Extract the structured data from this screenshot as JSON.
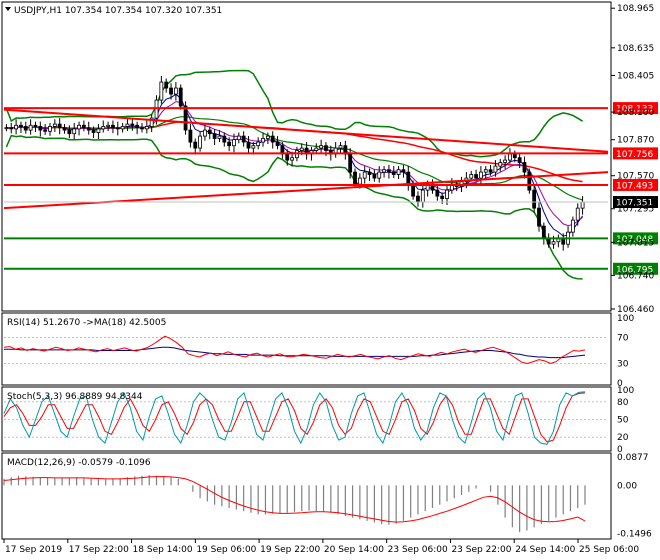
{
  "main_title": "USDJPY,H1  107.354 107.354 107.320 107.351",
  "rsi_title": "RSI(14) 51.2670  ->MA(18) 42.5005",
  "stoch_title": "Stoch(5,3,3) 96.8889 94.8344",
  "macd_title": "MACD(12,26,9) -0.0579 -0.1096",
  "current_price": "107.351",
  "colors": {
    "hline": "#ff0000",
    "hline_green": "#008000",
    "bands": "#008000",
    "ma_red": "#ff0000",
    "candle": "#000000",
    "ma_fast_blue": "#0000aa",
    "ma_fast_purple": "#aa00aa",
    "rsi": "#ff0000",
    "rsi_ma": "#000080",
    "stoch_k": "#0099aa",
    "stoch_d": "#ff0000",
    "macd_hist": "#808080",
    "macd_signal": "#ff0000"
  },
  "chart_data": [
    {
      "type": "candlestick",
      "symbol": "USDJPY",
      "timeframe": "H1",
      "ylim": [
        106.46,
        109.0
      ],
      "y_ticks": [
        "108.965",
        "108.635",
        "108.405",
        "108.100",
        "107.870",
        "107.570",
        "107.295",
        "107.015",
        "106.740",
        "106.460"
      ],
      "x_labels": [
        "17 Sep 2019",
        "17 Sep 22:00",
        "18 Sep 14:00",
        "19 Sep 06:00",
        "19 Sep 22:00",
        "20 Sep 14:00",
        "23 Sep 06:00",
        "23 Sep 22:00",
        "24 Sep 14:00",
        "25 Sep 06:00"
      ],
      "close": [
        107.97,
        107.96,
        107.99,
        107.98,
        107.95,
        107.99,
        107.98,
        107.95,
        107.94,
        107.98,
        108.0,
        107.97,
        107.95,
        107.92,
        107.96,
        107.99,
        107.97,
        107.95,
        107.93,
        107.96,
        107.98,
        107.99,
        107.97,
        107.96,
        107.98,
        108.0,
        107.99,
        107.97,
        107.96,
        107.98,
        108.05,
        108.2,
        108.35,
        108.3,
        108.25,
        108.3,
        108.15,
        107.95,
        107.85,
        107.8,
        107.9,
        107.95,
        107.92,
        107.88,
        107.9,
        107.85,
        107.82,
        107.87,
        107.9,
        107.85,
        107.8,
        107.82,
        107.85,
        107.88,
        107.9,
        107.85,
        107.82,
        107.75,
        107.7,
        107.72,
        107.78,
        107.8,
        107.75,
        107.78,
        107.8,
        107.82,
        107.78,
        107.75,
        107.8,
        107.82,
        107.75,
        107.6,
        107.5,
        107.55,
        107.6,
        107.58,
        107.55,
        107.6,
        107.62,
        107.6,
        107.58,
        107.62,
        107.6,
        107.5,
        107.4,
        107.35,
        107.45,
        107.5,
        107.45,
        107.4,
        107.38,
        107.45,
        107.5,
        107.48,
        107.52,
        107.55,
        107.58,
        107.55,
        107.6,
        107.62,
        107.6,
        107.65,
        107.68,
        107.7,
        107.75,
        107.72,
        107.68,
        107.6,
        107.45,
        107.3,
        107.15,
        107.05,
        107.0,
        107.02,
        107.05,
        107.0,
        107.1,
        107.2,
        107.3,
        107.35
      ],
      "hlines": [
        {
          "label": "108.133",
          "value": 108.133,
          "color": "red"
        },
        {
          "label": "107.756",
          "value": 107.756,
          "color": "red"
        },
        {
          "label": "107.493",
          "value": 107.493,
          "color": "red"
        },
        {
          "label": "107.048",
          "value": 107.048,
          "color": "green"
        },
        {
          "label": "106.795",
          "value": 106.795,
          "color": "green"
        }
      ],
      "trendlines": [
        {
          "from": [
            0,
            108.12
          ],
          "to": [
            147,
            107.77
          ]
        },
        {
          "from": [
            0,
            107.3
          ],
          "to": [
            147,
            107.6
          ]
        }
      ]
    },
    {
      "type": "line",
      "name": "RSI(14)",
      "ylim": [
        0,
        100
      ],
      "y_ticks": [
        "100",
        "70",
        "30",
        "0"
      ],
      "rsi": [
        55,
        56,
        52,
        54,
        50,
        53,
        51,
        49,
        52,
        55,
        53,
        50,
        51,
        54,
        52,
        50,
        48,
        51,
        53,
        50,
        52,
        54,
        51,
        49,
        52,
        55,
        60,
        66,
        72,
        68,
        62,
        55,
        45,
        42,
        40,
        44,
        46,
        42,
        45,
        48,
        44,
        42,
        40,
        44,
        46,
        42,
        40,
        43,
        45,
        41,
        40,
        42,
        44,
        43,
        41,
        39,
        38,
        41,
        44,
        42,
        40,
        42,
        44,
        41,
        39,
        37,
        40,
        42,
        38,
        36,
        39,
        42,
        45,
        43,
        41,
        44,
        47,
        45,
        48,
        50,
        52,
        49,
        47,
        50,
        53,
        55,
        52,
        49,
        44,
        38,
        32,
        30,
        33,
        36,
        34,
        30,
        33,
        40,
        45,
        50,
        49,
        51
      ],
      "rsi_ma": [
        52,
        52,
        52,
        51,
        51,
        51,
        51,
        51,
        51,
        51,
        51,
        51,
        51,
        51,
        51,
        51,
        50,
        50,
        50,
        50,
        50,
        50,
        50,
        51,
        52,
        53,
        54,
        55,
        55,
        54,
        52,
        50,
        49,
        48,
        47,
        46,
        45,
        45,
        44,
        44,
        44,
        44,
        43,
        43,
        43,
        43,
        43,
        42,
        42,
        42,
        42,
        42,
        42,
        42,
        42,
        42,
        41,
        41,
        41,
        41,
        41,
        41,
        41,
        41,
        41,
        41,
        41,
        41,
        41,
        41,
        41,
        42,
        42,
        43,
        43,
        44,
        45,
        46,
        47,
        48,
        49,
        50,
        50,
        50,
        49,
        48,
        47,
        45,
        44,
        42,
        41,
        40,
        40,
        39,
        39,
        39,
        40,
        41,
        42,
        43
      ]
    },
    {
      "type": "line",
      "name": "Stoch(5,3,3)",
      "ylim": [
        0,
        100
      ],
      "y_ticks": [
        "100",
        "80",
        "50",
        "20",
        "0"
      ],
      "k": [
        60,
        85,
        70,
        40,
        20,
        50,
        80,
        90,
        60,
        30,
        20,
        55,
        85,
        90,
        50,
        20,
        10,
        45,
        80,
        95,
        70,
        30,
        15,
        55,
        85,
        90,
        60,
        25,
        10,
        40,
        80,
        95,
        85,
        50,
        20,
        15,
        45,
        85,
        95,
        60,
        25,
        15,
        50,
        85,
        95,
        70,
        30,
        10,
        35,
        75,
        95,
        80,
        40,
        15,
        20,
        60,
        90,
        95,
        60,
        25,
        10,
        40,
        80,
        95,
        75,
        35,
        15,
        30,
        70,
        95,
        90,
        50,
        20,
        10,
        45,
        85,
        95,
        70,
        30,
        15,
        55,
        90,
        95,
        60,
        20,
        10,
        8,
        30,
        75,
        95,
        90,
        96,
        97
      ],
      "d": [
        55,
        70,
        75,
        60,
        40,
        40,
        55,
        75,
        75,
        55,
        35,
        35,
        55,
        75,
        75,
        55,
        30,
        25,
        45,
        70,
        85,
        65,
        40,
        30,
        50,
        75,
        80,
        60,
        35,
        25,
        45,
        75,
        85,
        75,
        50,
        30,
        30,
        55,
        80,
        80,
        55,
        30,
        30,
        55,
        80,
        85,
        65,
        35,
        25,
        45,
        75,
        85,
        70,
        40,
        25,
        35,
        65,
        85,
        80,
        55,
        30,
        25,
        50,
        80,
        85,
        65,
        35,
        25,
        45,
        75,
        90,
        75,
        45,
        25,
        25,
        55,
        85,
        85,
        60,
        35,
        25,
        55,
        85,
        85,
        55,
        25,
        12,
        15,
        40,
        70,
        90,
        94,
        95
      ]
    },
    {
      "type": "bar+line",
      "name": "MACD(12,26,9)",
      "ylim": [
        -0.16,
        0.0877
      ],
      "y_ticks": [
        "0.0877",
        "0.00",
        "-0.1496"
      ],
      "macd": [
        0.02,
        0.025,
        0.03,
        0.028,
        0.026,
        0.025,
        0.024,
        0.022,
        0.023,
        0.024,
        0.025,
        0.022,
        0.02,
        0.019,
        0.018,
        0.02,
        0.022,
        0.025,
        0.028,
        0.03,
        0.032,
        0.03,
        0.028,
        0.025,
        0.02,
        0.0,
        -0.02,
        -0.04,
        -0.05,
        -0.06,
        -0.065,
        -0.07,
        -0.075,
        -0.08,
        -0.085,
        -0.09,
        -0.09,
        -0.088,
        -0.087,
        -0.085,
        -0.082,
        -0.08,
        -0.078,
        -0.08,
        -0.082,
        -0.085,
        -0.09,
        -0.095,
        -0.1,
        -0.105,
        -0.11,
        -0.115,
        -0.12,
        -0.122,
        -0.118,
        -0.11,
        -0.1,
        -0.09,
        -0.08,
        -0.07,
        -0.06,
        -0.05,
        -0.04,
        -0.03,
        -0.02,
        -0.01,
        0.0,
        -0.02,
        -0.06,
        -0.1,
        -0.13,
        -0.145,
        -0.14,
        -0.13,
        -0.12,
        -0.11,
        -0.1,
        -0.09,
        -0.08,
        -0.07,
        -0.06
      ],
      "signal": [
        0.015,
        0.017,
        0.02,
        0.022,
        0.023,
        0.024,
        0.024,
        0.023,
        0.023,
        0.023,
        0.023,
        0.023,
        0.022,
        0.021,
        0.02,
        0.02,
        0.02,
        0.021,
        0.022,
        0.024,
        0.026,
        0.027,
        0.027,
        0.026,
        0.024,
        0.02,
        0.012,
        0.0,
        -0.012,
        -0.025,
        -0.037,
        -0.047,
        -0.056,
        -0.064,
        -0.071,
        -0.077,
        -0.082,
        -0.085,
        -0.087,
        -0.087,
        -0.086,
        -0.085,
        -0.083,
        -0.082,
        -0.082,
        -0.083,
        -0.085,
        -0.088,
        -0.092,
        -0.096,
        -0.1,
        -0.104,
        -0.108,
        -0.112,
        -0.114,
        -0.113,
        -0.11,
        -0.106,
        -0.1,
        -0.094,
        -0.087,
        -0.08,
        -0.072,
        -0.064,
        -0.055,
        -0.046,
        -0.037,
        -0.034,
        -0.039,
        -0.051,
        -0.067,
        -0.083,
        -0.096,
        -0.106,
        -0.111,
        -0.113,
        -0.112,
        -0.109,
        -0.104,
        -0.098,
        -0.11
      ]
    }
  ]
}
